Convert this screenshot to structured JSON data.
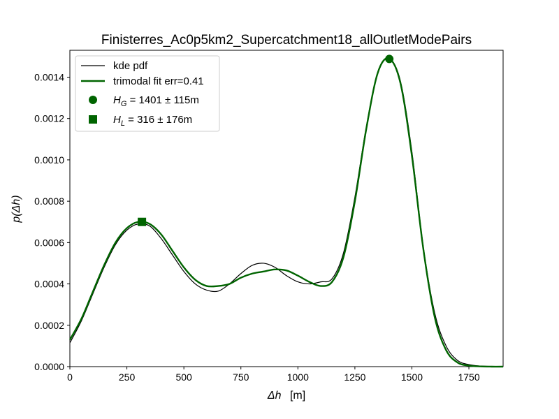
{
  "chart_data": {
    "type": "line",
    "title": "Finisterres_Ac0p5km2_Supercatchment18_allOutletModePairs",
    "xlabel": {
      "symbol": "Δh",
      "unit": "[m]"
    },
    "ylabel": {
      "symbol": "p(Δh)"
    },
    "xlim": [
      0,
      1900
    ],
    "ylim": [
      0,
      0.00153
    ],
    "xticks": [
      0,
      250,
      500,
      750,
      1000,
      1250,
      1500,
      1750
    ],
    "xtick_labels": [
      "0",
      "250",
      "500",
      "750",
      "1000",
      "1250",
      "1500",
      "1750"
    ],
    "yticks": [
      0,
      0.0002,
      0.0004,
      0.0006,
      0.0008,
      0.001,
      0.0012,
      0.0014
    ],
    "ytick_labels": [
      "0.0000",
      "0.0002",
      "0.0004",
      "0.0006",
      "0.0008",
      "0.0010",
      "0.0012",
      "0.0014"
    ],
    "grid": false,
    "legend_position": "top-left",
    "series": [
      {
        "name": "kde pdf",
        "color": "#000000",
        "x": [
          0,
          50,
          100,
          150,
          200,
          250,
          300,
          350,
          400,
          450,
          500,
          550,
          600,
          650,
          700,
          750,
          800,
          850,
          900,
          950,
          1000,
          1050,
          1100,
          1150,
          1200,
          1250,
          1300,
          1350,
          1400,
          1450,
          1500,
          1550,
          1600,
          1650,
          1700,
          1750,
          1800,
          1850,
          1900
        ],
        "y": [
          0.000115,
          0.00022,
          0.00035,
          0.00048,
          0.00059,
          0.00066,
          0.00069,
          0.00068,
          0.00062,
          0.00054,
          0.00046,
          0.0004,
          0.00037,
          0.000365,
          0.0004,
          0.00045,
          0.00049,
          0.0005,
          0.00048,
          0.00044,
          0.00041,
          0.0004,
          0.00041,
          0.000425,
          0.00055,
          0.00082,
          0.00116,
          0.00142,
          0.00149,
          0.00138,
          0.00104,
          0.00058,
          0.00026,
          0.0001,
          3e-05,
          1e-05,
          3e-06,
          1e-06,
          0
        ]
      },
      {
        "name": "trimodal fit err=0.41",
        "color": "#006400",
        "x": [
          0,
          50,
          100,
          150,
          200,
          250,
          300,
          350,
          400,
          450,
          500,
          550,
          600,
          650,
          700,
          750,
          800,
          850,
          900,
          950,
          1000,
          1050,
          1100,
          1150,
          1200,
          1250,
          1300,
          1350,
          1400,
          1450,
          1500,
          1550,
          1600,
          1650,
          1700,
          1750,
          1800,
          1850,
          1900
        ],
        "y": [
          0.00013,
          0.00023,
          0.00036,
          0.00049,
          0.0006,
          0.00067,
          0.0007,
          0.00069,
          0.00064,
          0.00056,
          0.00048,
          0.00042,
          0.00039,
          0.00039,
          0.0004,
          0.00043,
          0.00045,
          0.00046,
          0.00047,
          0.000465,
          0.00044,
          0.00041,
          0.00039,
          0.00041,
          0.00053,
          0.0008,
          0.00115,
          0.00142,
          0.00149,
          0.00137,
          0.00102,
          0.00057,
          0.00024,
          8e-05,
          2e-05,
          5e-06,
          1e-06,
          0,
          0
        ]
      }
    ],
    "markers": [
      {
        "name": "H_G = 1401 ± 115m",
        "label_main": "H",
        "label_sub": "G",
        "label_rest": " = 1401 ± 115m",
        "shape": "circle",
        "x": 1401,
        "y": 0.001488,
        "color": "#006400"
      },
      {
        "name": "H_L = 316 ± 176m",
        "label_main": "H",
        "label_sub": "L",
        "label_rest": " = 316 ± 176m",
        "shape": "square",
        "x": 316,
        "y": 0.0007,
        "color": "#006400"
      }
    ]
  }
}
